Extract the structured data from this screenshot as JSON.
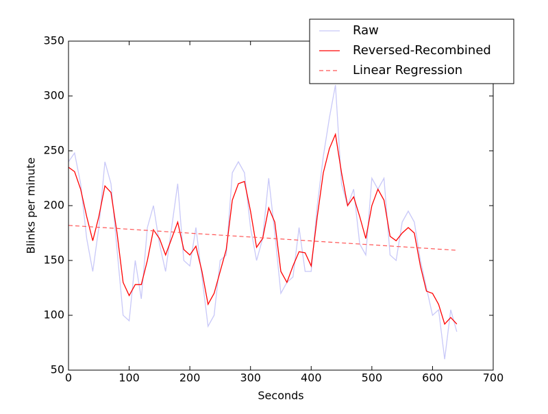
{
  "chart_data": {
    "type": "line",
    "x_label": "Seconds",
    "y_label": "Blinks per minute",
    "x": [
      0,
      10,
      20,
      30,
      40,
      50,
      60,
      70,
      80,
      90,
      100,
      110,
      120,
      130,
      140,
      150,
      160,
      170,
      180,
      190,
      200,
      210,
      220,
      230,
      240,
      250,
      260,
      270,
      280,
      290,
      300,
      310,
      320,
      330,
      340,
      350,
      360,
      370,
      380,
      390,
      400,
      410,
      420,
      430,
      440,
      450,
      460,
      470,
      480,
      490,
      500,
      510,
      520,
      530,
      540,
      550,
      560,
      570,
      580,
      590,
      600,
      610,
      620,
      630,
      640
    ],
    "series": [
      {
        "name": "Raw",
        "color": "#c8c8f8",
        "style": "solid",
        "values": [
          240,
          248,
          220,
          170,
          140,
          180,
          240,
          220,
          160,
          100,
          95,
          150,
          115,
          180,
          200,
          165,
          140,
          180,
          220,
          150,
          145,
          180,
          135,
          90,
          100,
          150,
          155,
          230,
          240,
          230,
          180,
          150,
          170,
          225,
          175,
          120,
          130,
          135,
          180,
          140,
          140,
          200,
          245,
          280,
          310,
          220,
          200,
          215,
          165,
          155,
          225,
          215,
          225,
          155,
          150,
          185,
          195,
          185,
          150,
          125,
          100,
          105,
          60,
          105,
          85
        ]
      },
      {
        "name": "Reversed-Recombined",
        "color": "#ff0000",
        "style": "solid",
        "values": [
          235,
          231,
          215,
          190,
          168,
          190,
          218,
          212,
          175,
          130,
          118,
          128,
          128,
          150,
          178,
          170,
          155,
          170,
          185,
          160,
          155,
          163,
          140,
          110,
          120,
          140,
          160,
          205,
          220,
          222,
          195,
          162,
          170,
          198,
          185,
          140,
          130,
          145,
          158,
          157,
          145,
          190,
          230,
          252,
          265,
          230,
          200,
          208,
          190,
          170,
          200,
          215,
          205,
          172,
          168,
          175,
          180,
          175,
          145,
          122,
          120,
          110,
          92,
          98,
          92
        ]
      },
      {
        "name": "Linear Regression",
        "color": "#ff5555",
        "style": "dashed",
        "values": [
          182.0,
          181.6,
          181.3,
          180.9,
          180.6,
          180.2,
          179.9,
          179.5,
          179.2,
          178.8,
          178.5,
          178.1,
          177.7,
          177.4,
          177.0,
          176.7,
          176.3,
          176.0,
          175.6,
          175.3,
          174.9,
          174.5,
          174.2,
          173.8,
          173.5,
          173.1,
          172.8,
          172.4,
          172.1,
          171.7,
          171.4,
          171.0,
          170.6,
          170.3,
          169.9,
          169.6,
          169.2,
          168.9,
          168.5,
          168.2,
          167.8,
          167.4,
          167.1,
          166.7,
          166.4,
          166.0,
          165.7,
          165.3,
          165.0,
          164.6,
          164.3,
          163.9,
          163.5,
          163.2,
          162.8,
          162.5,
          162.1,
          161.8,
          161.4,
          161.1,
          160.7,
          160.3,
          160.0,
          159.6,
          159.3
        ]
      }
    ],
    "xlim": [
      0,
      700
    ],
    "xticks": [
      0,
      100,
      200,
      300,
      400,
      500,
      600,
      700
    ],
    "ylim": [
      50,
      350
    ],
    "yticks": [
      50,
      100,
      150,
      200,
      250,
      300,
      350
    ],
    "grid": false,
    "legend": "upper right"
  }
}
